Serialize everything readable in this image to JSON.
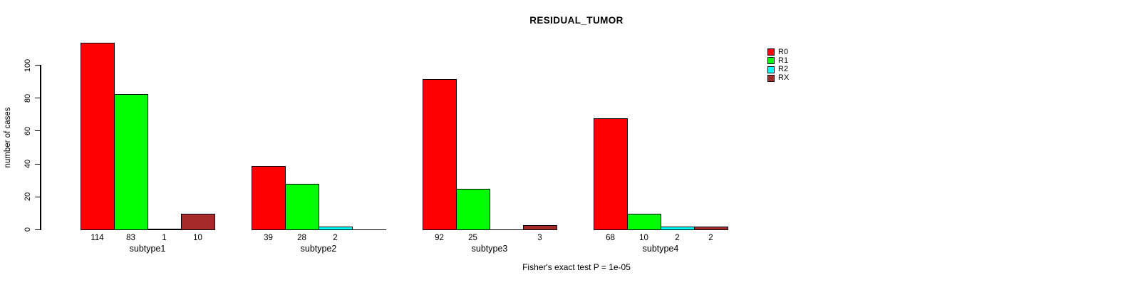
{
  "figure": {
    "background": "#FFFFFF"
  },
  "chart_data": {
    "type": "bar",
    "title": "RESIDUAL_TUMOR",
    "ylabel": "number of cases",
    "xlabel": "",
    "categories": [
      "subtype1",
      "subtype2",
      "subtype3",
      "subtype4"
    ],
    "series": [
      {
        "name": "R0",
        "color": "#FF0000",
        "values": [
          114,
          39,
          92,
          68
        ]
      },
      {
        "name": "R1",
        "color": "#00FF00",
        "values": [
          83,
          28,
          25,
          10
        ]
      },
      {
        "name": "R2",
        "color": "#00FFFF",
        "values": [
          1,
          2,
          0,
          2
        ]
      },
      {
        "name": "RX",
        "color": "#A52A2A",
        "values": [
          10,
          0,
          3,
          2
        ]
      }
    ],
    "y_ticks": [
      0,
      20,
      40,
      60,
      80,
      100
    ],
    "axis_range": [
      0,
      100
    ],
    "grid": false,
    "legend_position": "upper-right-inside",
    "bar_value_labels_note": "bar values printed under each bar; zero values have no bar and no label",
    "caption": "Fisher's exact test P = 1e-05"
  }
}
